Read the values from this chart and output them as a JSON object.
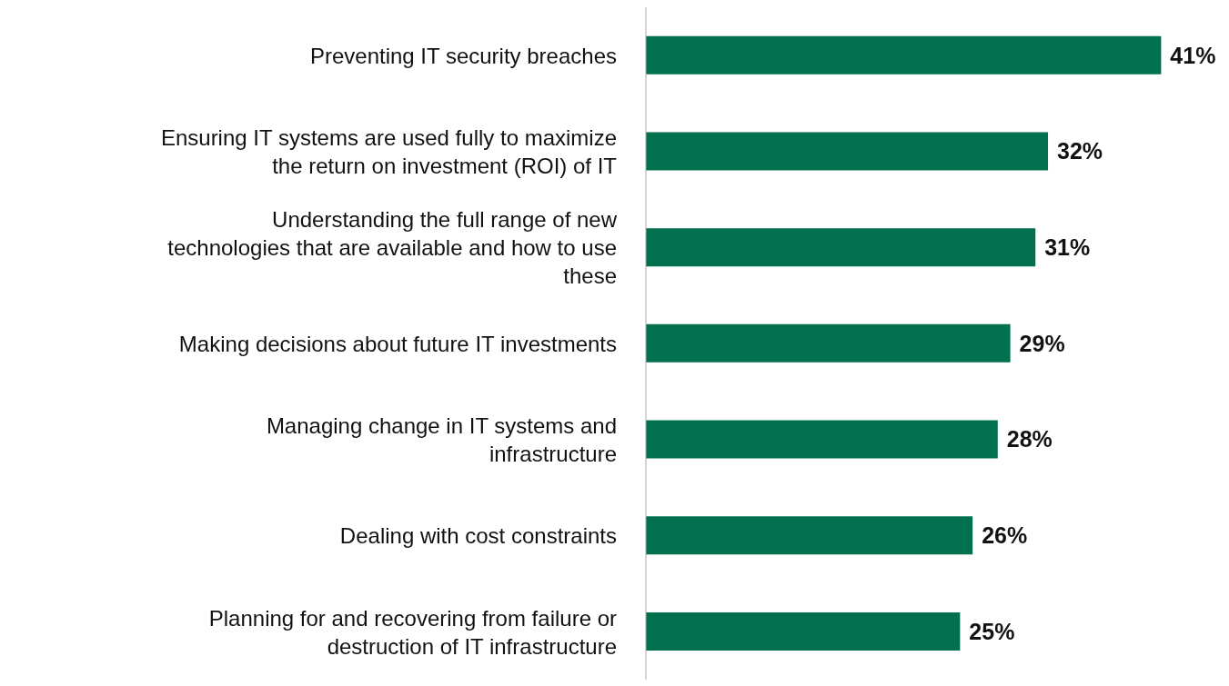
{
  "chart_data": {
    "type": "bar",
    "orientation": "horizontal",
    "categories": [
      "Preventing IT security breaches",
      "Ensuring IT systems are used fully to maximize the return on investment (ROI) of IT",
      "Understanding the full range of new technologies that are available and how to use these",
      "Making decisions about future IT investments",
      "Managing change in IT systems and infrastructure",
      "Dealing with cost constraints",
      "Planning for and recovering from failure or destruction of IT infrastructure"
    ],
    "values": [
      41,
      32,
      31,
      29,
      28,
      26,
      25
    ],
    "value_labels": [
      "41%",
      "32%",
      "31%",
      "29%",
      "28%",
      "26%",
      "25%"
    ],
    "color": "#00704f",
    "tick_labels": "y"
  }
}
